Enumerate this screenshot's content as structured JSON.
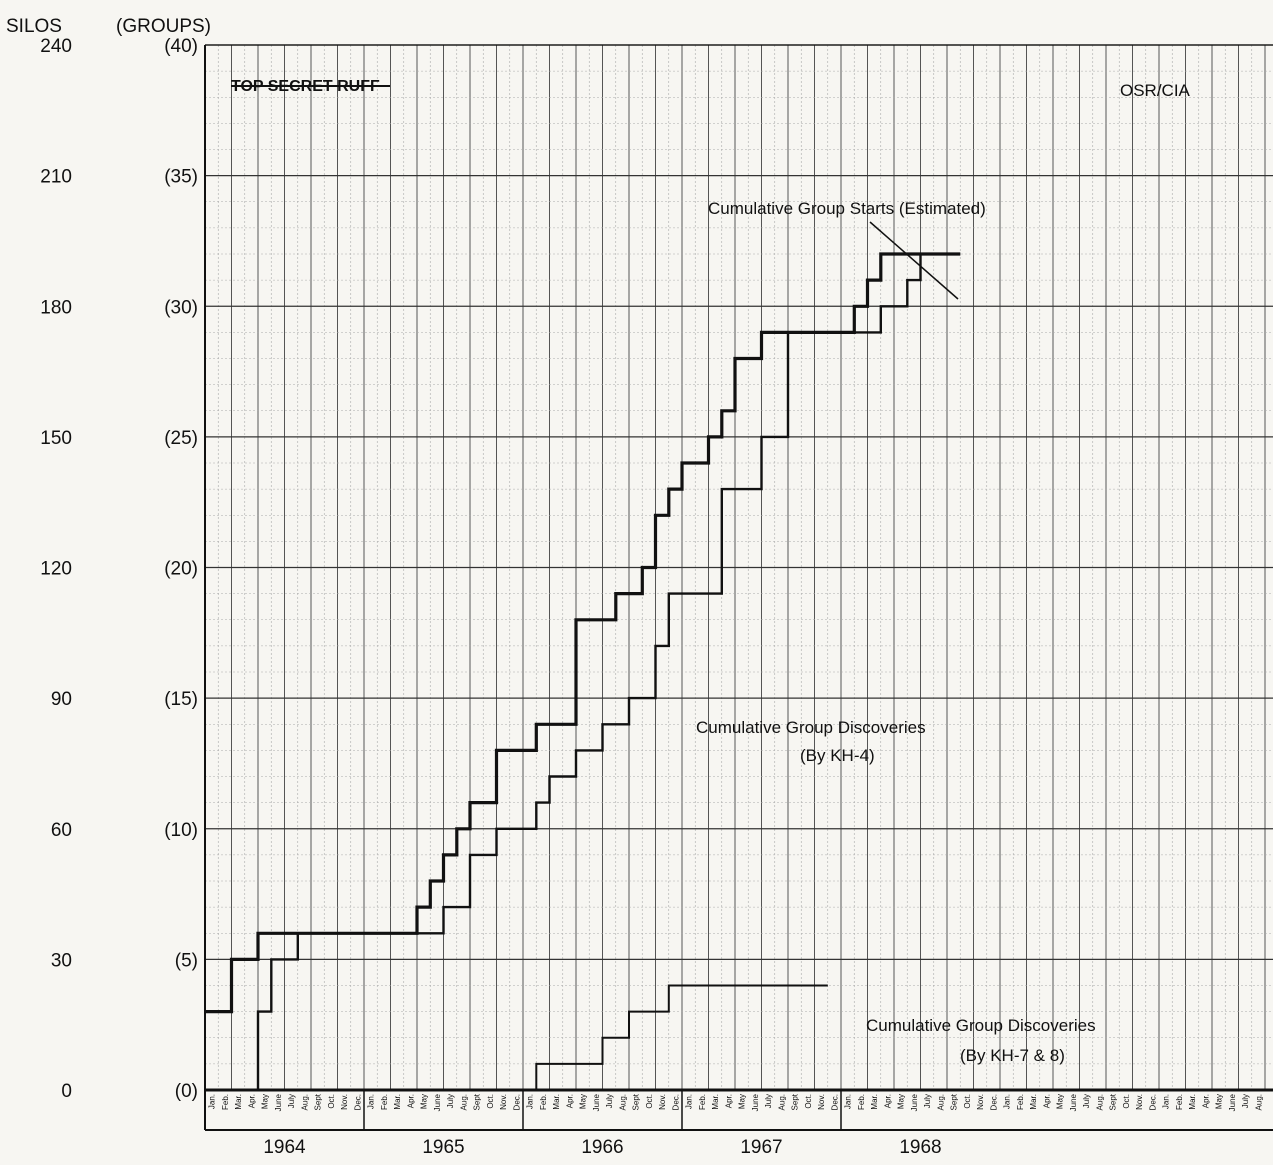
{
  "chart_data": {
    "type": "line",
    "title": "",
    "ylabel_left": "SILOS",
    "ylabel_right": "(GROUPS)",
    "silos_ticks": [
      "0",
      "30",
      "60",
      "90",
      "120",
      "150",
      "180",
      "210",
      "240"
    ],
    "group_ticks": [
      "(0)",
      "(5)",
      "(10)",
      "(15)",
      "(20)",
      "(25)",
      "(30)",
      "(35)",
      "(40)"
    ],
    "ylim": [
      0,
      40
    ],
    "months": [
      "Jan.",
      "Feb.",
      "Mar.",
      "Apr.",
      "May",
      "June",
      "July",
      "Aug.",
      "Sept",
      "Oct.",
      "Nov.",
      "Dec."
    ],
    "years": [
      "1964",
      "1965",
      "1966",
      "1967",
      "1968"
    ],
    "x_unit": "month index from Jan. 1964",
    "stamp": "TOP SECRET RUFF",
    "source": "OSR/CIA",
    "series": [
      {
        "name": "Cumulative Group Starts (Estimated)",
        "points": [
          [
            0,
            3
          ],
          [
            2,
            3
          ],
          [
            2,
            5
          ],
          [
            4,
            5
          ],
          [
            4,
            6
          ],
          [
            16,
            6
          ],
          [
            16,
            7
          ],
          [
            17,
            7
          ],
          [
            17,
            8
          ],
          [
            18,
            8
          ],
          [
            18,
            9
          ],
          [
            19,
            9
          ],
          [
            19,
            10
          ],
          [
            20,
            10
          ],
          [
            20,
            11
          ],
          [
            22,
            11
          ],
          [
            22,
            13
          ],
          [
            25,
            13
          ],
          [
            25,
            14
          ],
          [
            28,
            14
          ],
          [
            28,
            18
          ],
          [
            31,
            18
          ],
          [
            31,
            19
          ],
          [
            33,
            19
          ],
          [
            33,
            20
          ],
          [
            34,
            20
          ],
          [
            34,
            22
          ],
          [
            35,
            22
          ],
          [
            35,
            23
          ],
          [
            36,
            23
          ],
          [
            36,
            24
          ],
          [
            38,
            24
          ],
          [
            38,
            25
          ],
          [
            39,
            25
          ],
          [
            39,
            26
          ],
          [
            40,
            26
          ],
          [
            40,
            28
          ],
          [
            42,
            28
          ],
          [
            42,
            29
          ],
          [
            49,
            29
          ],
          [
            49,
            30
          ],
          [
            50,
            30
          ],
          [
            50,
            31
          ],
          [
            51,
            31
          ],
          [
            51,
            32
          ],
          [
            57,
            32
          ]
        ]
      },
      {
        "name": "Cumulative Group Discoveries (By KH-4)",
        "points": [
          [
            4,
            0
          ],
          [
            4,
            3
          ],
          [
            5,
            3
          ],
          [
            5,
            5
          ],
          [
            7,
            5
          ],
          [
            7,
            6
          ],
          [
            18,
            6
          ],
          [
            18,
            7
          ],
          [
            20,
            7
          ],
          [
            20,
            9
          ],
          [
            22,
            9
          ],
          [
            22,
            10
          ],
          [
            25,
            10
          ],
          [
            25,
            11
          ],
          [
            26,
            11
          ],
          [
            26,
            12
          ],
          [
            28,
            12
          ],
          [
            28,
            13
          ],
          [
            30,
            13
          ],
          [
            30,
            14
          ],
          [
            32,
            14
          ],
          [
            32,
            15
          ],
          [
            34,
            15
          ],
          [
            34,
            17
          ],
          [
            35,
            17
          ],
          [
            35,
            19
          ],
          [
            39,
            19
          ],
          [
            39,
            23
          ],
          [
            42,
            23
          ],
          [
            42,
            25
          ],
          [
            44,
            25
          ],
          [
            44,
            29
          ],
          [
            51,
            29
          ],
          [
            51,
            30
          ],
          [
            53,
            30
          ],
          [
            53,
            31
          ],
          [
            54,
            31
          ],
          [
            54,
            32
          ]
        ]
      },
      {
        "name": "Cumulative Group Discoveries (By KH-7 & 8)",
        "points": [
          [
            25,
            0
          ],
          [
            25,
            1
          ],
          [
            30,
            1
          ],
          [
            30,
            2
          ],
          [
            32,
            2
          ],
          [
            32,
            3
          ],
          [
            35,
            3
          ],
          [
            35,
            4
          ],
          [
            47,
            4
          ]
        ]
      }
    ]
  }
}
